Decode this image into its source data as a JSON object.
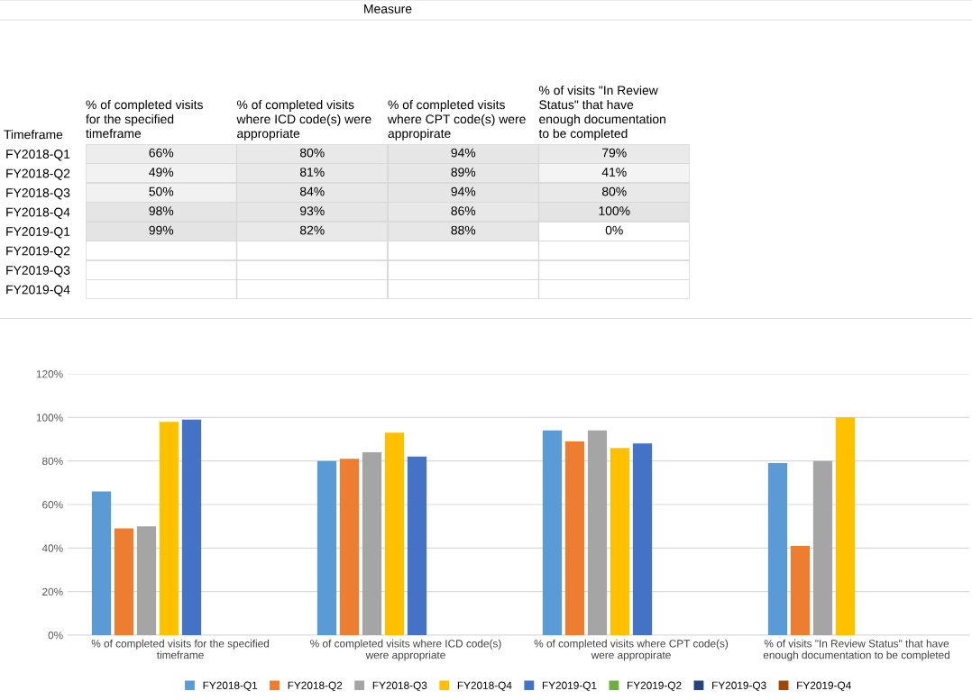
{
  "chart_data": [
    {
      "type": "heatmap",
      "title": "Measure",
      "ylabel": "Timeframe",
      "categories": [
        "% of completed visits for the specified timeframe",
        "% of completed visits where ICD code(s) were appropriate",
        "% of completed visits where CPT code(s) were appropirate",
        "% of visits \"In Review Status\" that have enough documentation to be completed"
      ],
      "y_categories": [
        "FY2018-Q1",
        "FY2018-Q2",
        "FY2018-Q3",
        "FY2018-Q4",
        "FY2019-Q1",
        "FY2019-Q2",
        "FY2019-Q3",
        "FY2019-Q4"
      ],
      "cells": [
        [
          66,
          80,
          94,
          79
        ],
        [
          49,
          81,
          89,
          41
        ],
        [
          50,
          84,
          94,
          80
        ],
        [
          98,
          93,
          86,
          100
        ],
        [
          99,
          82,
          88,
          0
        ],
        [
          null,
          null,
          null,
          null
        ],
        [
          null,
          null,
          null,
          null
        ],
        [
          null,
          null,
          null,
          null
        ]
      ],
      "cell_labels": [
        [
          "66%",
          "80%",
          "94%",
          "79%"
        ],
        [
          "49%",
          "81%",
          "89%",
          "41%"
        ],
        [
          "50%",
          "84%",
          "94%",
          "80%"
        ],
        [
          "98%",
          "93%",
          "86%",
          "100%"
        ],
        [
          "99%",
          "82%",
          "88%",
          "0%"
        ],
        [
          null,
          null,
          null,
          null
        ],
        [
          null,
          null,
          null,
          null
        ],
        [
          null,
          null,
          null,
          null
        ]
      ]
    },
    {
      "type": "bar",
      "categories": [
        "% of completed visits for the specified timeframe",
        "% of completed visits where ICD code(s) were appropriate",
        "% of completed visits where CPT code(s) were appropirate",
        "% of visits \"In Review Status\" that have enough documentation to be completed"
      ],
      "series": [
        {
          "name": "FY2018-Q1",
          "color": "#5b9bd5",
          "values": [
            66,
            80,
            94,
            79
          ]
        },
        {
          "name": "FY2018-Q2",
          "color": "#ed7d31",
          "values": [
            49,
            81,
            89,
            41
          ]
        },
        {
          "name": "FY2018-Q3",
          "color": "#a5a5a5",
          "values": [
            50,
            84,
            94,
            80
          ]
        },
        {
          "name": "FY2018-Q4",
          "color": "#ffc000",
          "values": [
            98,
            93,
            86,
            100
          ]
        },
        {
          "name": "FY2019-Q1",
          "color": "#4472c4",
          "values": [
            99,
            82,
            88,
            0
          ]
        },
        {
          "name": "FY2019-Q2",
          "color": "#70ad47",
          "values": [
            null,
            null,
            null,
            null
          ]
        },
        {
          "name": "FY2019-Q3",
          "color": "#264478",
          "values": [
            null,
            null,
            null,
            null
          ]
        },
        {
          "name": "FY2019-Q4",
          "color": "#9e480e",
          "values": [
            null,
            null,
            null,
            null
          ]
        }
      ],
      "ylim": [
        0,
        120
      ],
      "yticks": [
        {
          "value": 0,
          "label": "0%"
        },
        {
          "value": 20,
          "label": "20%"
        },
        {
          "value": 40,
          "label": "40%"
        },
        {
          "value": 60,
          "label": "60%"
        },
        {
          "value": 80,
          "label": "80%"
        },
        {
          "value": 100,
          "label": "100%"
        },
        {
          "value": 120,
          "label": "120%"
        }
      ],
      "grid": "y",
      "legend": "bottom"
    }
  ]
}
